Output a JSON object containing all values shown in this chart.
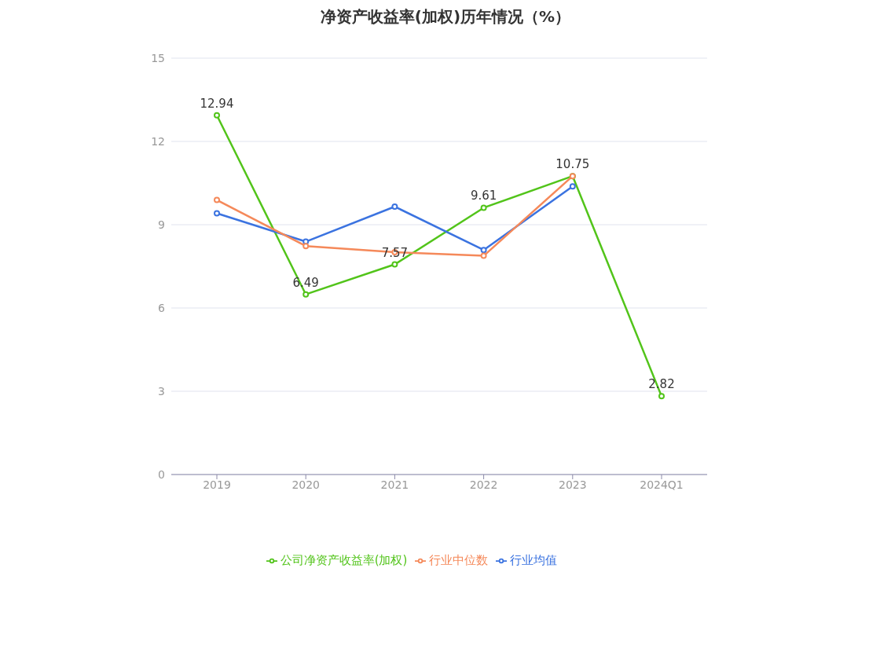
{
  "chart_data": {
    "type": "line",
    "title": "净资产收益率(加权)历年情况（%）",
    "categories": [
      "2019",
      "2020",
      "2021",
      "2022",
      "2023",
      "2024Q1"
    ],
    "series": [
      {
        "name": "公司净资产收益率(加权)",
        "color": "#52c41a",
        "values": [
          12.94,
          6.49,
          7.57,
          9.61,
          10.75,
          2.82
        ],
        "value_labels": [
          "12.94",
          "6.49",
          "7.57",
          "9.61",
          "10.75",
          "2.82"
        ]
      },
      {
        "name": "行业均值",
        "color": "#3b73e0",
        "values": [
          9.41,
          8.39,
          9.65,
          8.09,
          10.38,
          null
        ]
      },
      {
        "name": "行业中位数",
        "color": "#f5895a",
        "values": [
          9.89,
          8.23,
          8.01,
          7.88,
          10.75,
          null
        ]
      }
    ],
    "ylim": [
      0,
      15
    ],
    "yticks": [
      0,
      3,
      6,
      9,
      12,
      15
    ],
    "grid": "y",
    "legend": "bottom",
    "marker": "circle",
    "line_style": "solid"
  }
}
